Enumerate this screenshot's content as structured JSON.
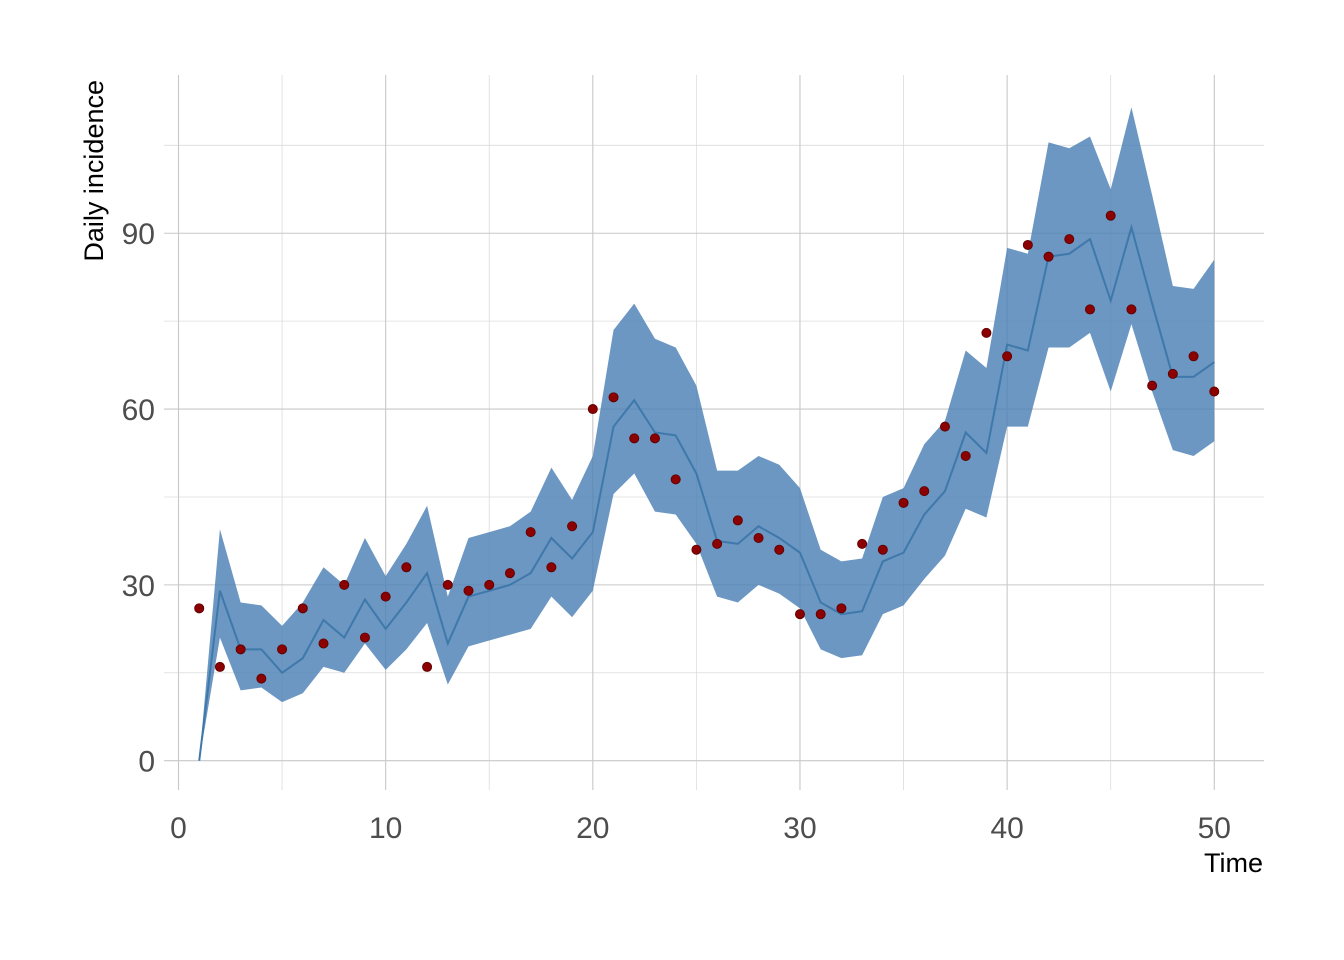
{
  "chart_data": {
    "type": "line",
    "title": "",
    "xlabel": "Time",
    "ylabel": "Daily incidence",
    "xlim": [
      -0.7,
      52.4
    ],
    "ylim": [
      -5,
      117
    ],
    "x_ticks": [
      0,
      10,
      20,
      30,
      40,
      50
    ],
    "y_ticks": [
      0,
      30,
      60,
      90
    ],
    "grid": true,
    "legend": "none",
    "colors": {
      "band": "#4a80b4",
      "line": "#3f78aa",
      "points": "#8b0000",
      "grid": "#c8c8c8"
    },
    "series": [
      {
        "type": "area",
        "x": [
          1,
          2,
          3,
          4,
          5,
          6,
          7,
          8,
          9,
          10,
          11,
          12,
          13,
          14,
          15,
          16,
          17,
          18,
          19,
          20,
          21,
          22,
          23,
          24,
          25,
          26,
          27,
          28,
          29,
          30,
          31,
          32,
          33,
          34,
          35,
          36,
          37,
          38,
          39,
          40,
          41,
          42,
          43,
          44,
          45,
          46,
          47,
          48,
          49,
          50
        ],
        "lower": [
          0,
          21,
          12,
          12.5,
          10,
          11.5,
          16,
          15,
          20,
          15.5,
          19,
          23.5,
          13,
          19.5,
          20.5,
          21.5,
          22.5,
          28,
          24.5,
          29,
          45.5,
          49,
          42.5,
          42,
          37,
          28,
          27,
          30,
          28.5,
          26,
          19,
          17.5,
          18,
          25,
          26.5,
          31,
          35,
          43,
          41.5,
          57,
          57,
          70.5,
          70.5,
          73,
          63,
          74.5,
          63,
          53,
          52,
          54.5
        ],
        "upper": [
          0,
          39.5,
          27,
          26.5,
          23,
          27,
          33,
          30,
          38,
          31.5,
          37,
          43.5,
          28,
          38,
          39,
          40,
          42.5,
          50,
          44.5,
          52,
          73.5,
          78,
          72,
          70.5,
          64,
          49.5,
          49.5,
          52,
          50.5,
          46.5,
          36,
          34,
          34.5,
          45,
          46.5,
          54,
          58,
          70,
          67,
          87.5,
          86.5,
          105.5,
          104.5,
          106.5,
          97.5,
          111.5,
          96.5,
          81,
          80.5,
          85.5
        ]
      },
      {
        "type": "line",
        "x": [
          1,
          2,
          3,
          4,
          5,
          6,
          7,
          8,
          9,
          10,
          11,
          12,
          13,
          14,
          15,
          16,
          17,
          18,
          19,
          20,
          21,
          22,
          23,
          24,
          25,
          26,
          27,
          28,
          29,
          30,
          31,
          32,
          33,
          34,
          35,
          36,
          37,
          38,
          39,
          40,
          41,
          42,
          43,
          44,
          45,
          46,
          47,
          48,
          49,
          50
        ],
        "values": [
          0,
          29,
          19,
          19,
          15,
          17.5,
          24,
          21,
          27.5,
          22.5,
          27,
          32,
          20,
          28,
          29,
          30,
          32,
          38,
          34.5,
          39,
          57,
          61.5,
          56,
          55.5,
          49,
          37.5,
          37,
          40,
          38,
          35.5,
          27,
          25,
          25.5,
          34,
          35.5,
          42,
          46,
          56,
          52.5,
          71,
          70,
          86,
          86.5,
          89,
          78.5,
          91,
          78,
          65.5,
          65.5,
          68
        ]
      },
      {
        "type": "scatter",
        "x": [
          1,
          2,
          3,
          4,
          5,
          6,
          7,
          8,
          9,
          10,
          11,
          12,
          13,
          14,
          15,
          16,
          17,
          18,
          19,
          20,
          21,
          22,
          23,
          24,
          25,
          26,
          27,
          28,
          29,
          30,
          31,
          32,
          33,
          34,
          35,
          36,
          37,
          38,
          39,
          40,
          41,
          42,
          43,
          44,
          45,
          46,
          47,
          48,
          49,
          50
        ],
        "values": [
          26,
          16,
          19,
          14,
          19,
          26,
          20,
          30,
          21,
          28,
          33,
          16,
          30,
          29,
          30,
          32,
          39,
          33,
          40,
          60,
          62,
          55,
          55,
          48,
          36,
          37,
          41,
          38,
          36,
          25,
          25,
          26,
          37,
          36,
          44,
          46,
          57,
          52,
          73,
          69,
          88,
          86,
          89,
          77,
          93,
          77,
          64,
          66,
          69,
          63
        ]
      }
    ]
  }
}
